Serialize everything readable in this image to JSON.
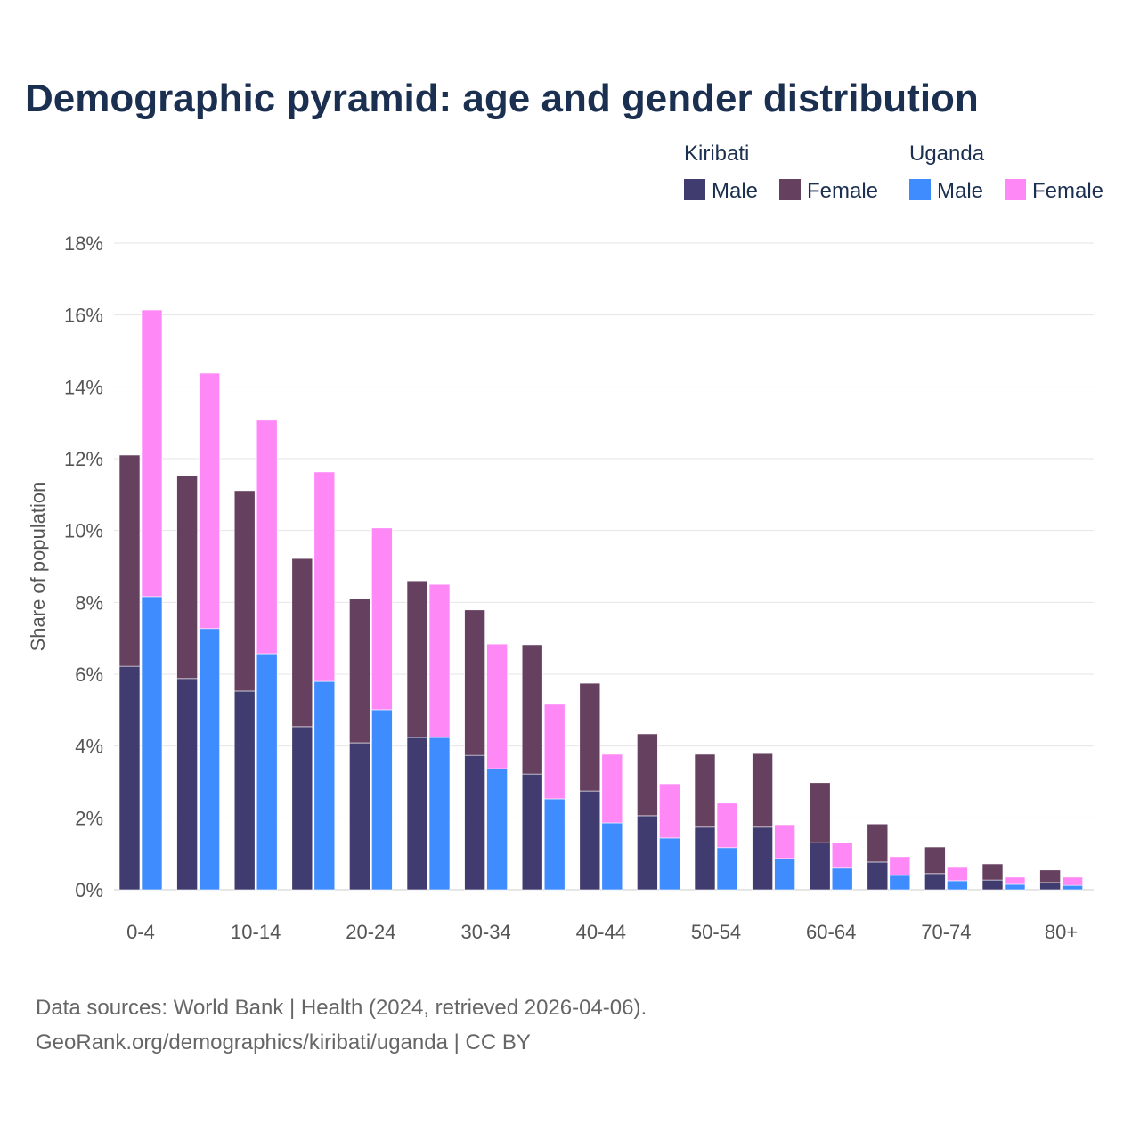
{
  "chart_data": {
    "type": "bar",
    "stacked": true,
    "title": "Demographic pyramid: age and gender distribution",
    "ylabel": "Share of population",
    "xlabel": "",
    "ylim": [
      0,
      18
    ],
    "yticks": [
      "0%",
      "2%",
      "4%",
      "6%",
      "8%",
      "10%",
      "12%",
      "14%",
      "16%",
      "18%"
    ],
    "grid": true,
    "legend_position": "top-right",
    "categories": [
      "0-4",
      "5-9",
      "10-14",
      "15-19",
      "20-24",
      "25-29",
      "30-34",
      "35-39",
      "40-44",
      "45-49",
      "50-54",
      "55-59",
      "60-64",
      "65-69",
      "70-74",
      "75-79",
      "80+"
    ],
    "xtick_labels": [
      "0-4",
      "",
      "10-14",
      "",
      "20-24",
      "",
      "30-34",
      "",
      "40-44",
      "",
      "50-54",
      "",
      "60-64",
      "",
      "70-74",
      "",
      "80+"
    ],
    "groups": [
      {
        "name": "Kiribati",
        "series": [
          {
            "name": "Male",
            "color": "#413c6f",
            "values": [
              6.22,
              5.88,
              5.53,
              4.54,
              4.09,
              4.24,
              3.74,
              3.22,
              2.75,
              2.06,
              1.74,
              1.74,
              1.31,
              0.77,
              0.45,
              0.27,
              0.2
            ]
          },
          {
            "name": "Female",
            "color": "#66405f",
            "values": [
              5.88,
              5.65,
              5.58,
              4.68,
              4.02,
              4.36,
              4.05,
              3.6,
              3.0,
              2.28,
              2.03,
              2.05,
              1.67,
              1.06,
              0.74,
              0.45,
              0.35
            ]
          }
        ]
      },
      {
        "name": "Uganda",
        "series": [
          {
            "name": "Male",
            "color": "#3f8cff",
            "values": [
              8.16,
              7.27,
              6.57,
              5.8,
              5.01,
              4.24,
              3.37,
              2.53,
              1.86,
              1.44,
              1.17,
              0.87,
              0.6,
              0.4,
              0.25,
              0.15,
              0.12
            ]
          },
          {
            "name": "Female",
            "color": "#ff88f7",
            "values": [
              7.98,
              7.11,
              6.5,
              5.83,
              5.06,
              4.26,
              3.47,
              2.63,
              1.91,
              1.51,
              1.24,
              0.94,
              0.71,
              0.52,
              0.37,
              0.2,
              0.23
            ]
          }
        ]
      }
    ]
  },
  "source": {
    "line1": "Data sources: World Bank | Health (2024, retrieved 2026-04-06).",
    "line2": "GeoRank.org/demographics/kiribati/uganda | CC BY"
  }
}
